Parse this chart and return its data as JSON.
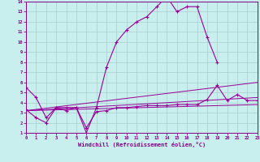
{
  "xlabel": "Windchill (Refroidissement éolien,°C)",
  "xlim": [
    0,
    23
  ],
  "ylim": [
    1,
    14
  ],
  "xticks": [
    0,
    1,
    2,
    3,
    4,
    5,
    6,
    7,
    8,
    9,
    10,
    11,
    12,
    13,
    14,
    15,
    16,
    17,
    18,
    19,
    20,
    21,
    22,
    23
  ],
  "yticks": [
    1,
    2,
    3,
    4,
    5,
    6,
    7,
    8,
    9,
    10,
    11,
    12,
    13,
    14
  ],
  "bg_color": "#c8eeee",
  "grid_color": "#aacccc",
  "line_color": "#990099",
  "temp_x": [
    0,
    1,
    2,
    3,
    4,
    5,
    6,
    7,
    8,
    9,
    10,
    11,
    12,
    13,
    14,
    15,
    16,
    17,
    18,
    19
  ],
  "temp_y": [
    5.5,
    4.5,
    2.5,
    3.5,
    3.5,
    3.5,
    1.0,
    3.5,
    7.5,
    10.0,
    11.2,
    12.0,
    12.5,
    13.5,
    14.5,
    13.0,
    13.5,
    13.5,
    10.5,
    8.0
  ],
  "wc_x": [
    0,
    1,
    2,
    3,
    4,
    5,
    6,
    7,
    8,
    9,
    10,
    11,
    12,
    13,
    14,
    15,
    16,
    17,
    18,
    19,
    20,
    21,
    22,
    23
  ],
  "wc_y": [
    3.3,
    2.5,
    2.0,
    3.5,
    3.2,
    3.5,
    1.5,
    3.1,
    3.2,
    3.5,
    3.5,
    3.6,
    3.7,
    3.7,
    3.7,
    3.8,
    3.8,
    3.8,
    4.3,
    5.7,
    4.2,
    4.8,
    4.2,
    4.2
  ],
  "ref_lines": [
    {
      "x": [
        0,
        23
      ],
      "y": [
        3.2,
        3.8
      ]
    },
    {
      "x": [
        0,
        23
      ],
      "y": [
        3.2,
        4.5
      ]
    },
    {
      "x": [
        0,
        23
      ],
      "y": [
        3.2,
        6.0
      ]
    }
  ]
}
